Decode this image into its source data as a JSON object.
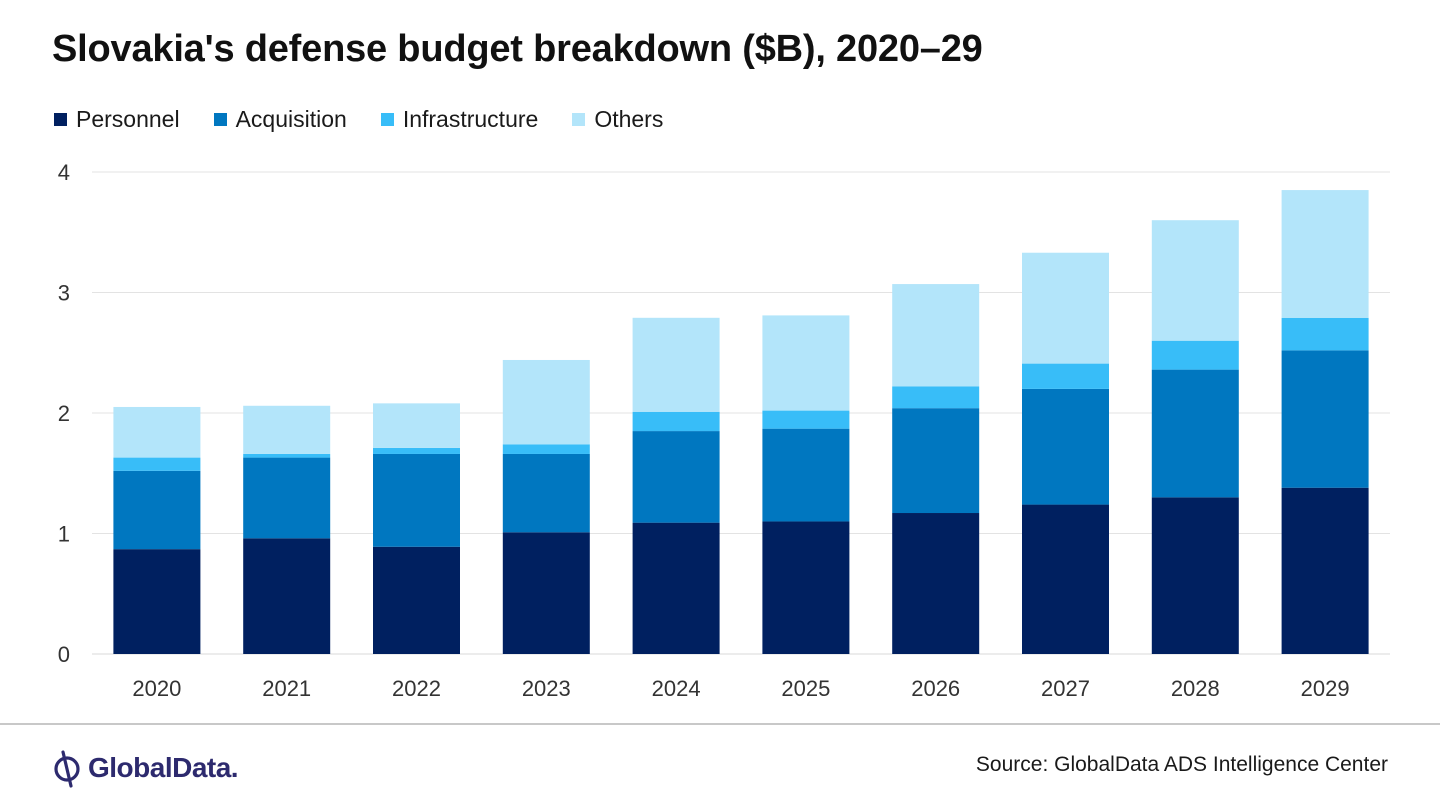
{
  "chart_data": {
    "type": "bar",
    "stacked": true,
    "title": "Slovakia's defense budget breakdown ($B), 2020–29",
    "categories": [
      "2020",
      "2021",
      "2022",
      "2023",
      "2024",
      "2025",
      "2026",
      "2027",
      "2028",
      "2029"
    ],
    "series": [
      {
        "name": "Personnel",
        "color": "#002060",
        "values": [
          0.87,
          0.96,
          0.89,
          1.01,
          1.09,
          1.1,
          1.17,
          1.24,
          1.3,
          1.38
        ]
      },
      {
        "name": "Acquisition",
        "color": "#0077c0",
        "values": [
          0.65,
          0.67,
          0.77,
          0.65,
          0.76,
          0.77,
          0.87,
          0.96,
          1.06,
          1.14
        ]
      },
      {
        "name": "Infrastructure",
        "color": "#38bdf8",
        "values": [
          0.11,
          0.03,
          0.05,
          0.08,
          0.16,
          0.15,
          0.18,
          0.21,
          0.24,
          0.27
        ]
      },
      {
        "name": "Others",
        "color": "#b3e5fa",
        "values": [
          0.42,
          0.4,
          0.37,
          0.7,
          0.78,
          0.79,
          0.85,
          0.92,
          1.0,
          1.06
        ]
      }
    ],
    "ylim": [
      0,
      4
    ],
    "yticks": [
      "0",
      "1",
      "2",
      "3",
      "4"
    ],
    "xlabel": "",
    "ylabel": "",
    "grid": true,
    "legend": "top-left"
  },
  "footer": {
    "logo_text": "GlobalData.",
    "source": "Source: GlobalData ADS Intelligence Center"
  }
}
